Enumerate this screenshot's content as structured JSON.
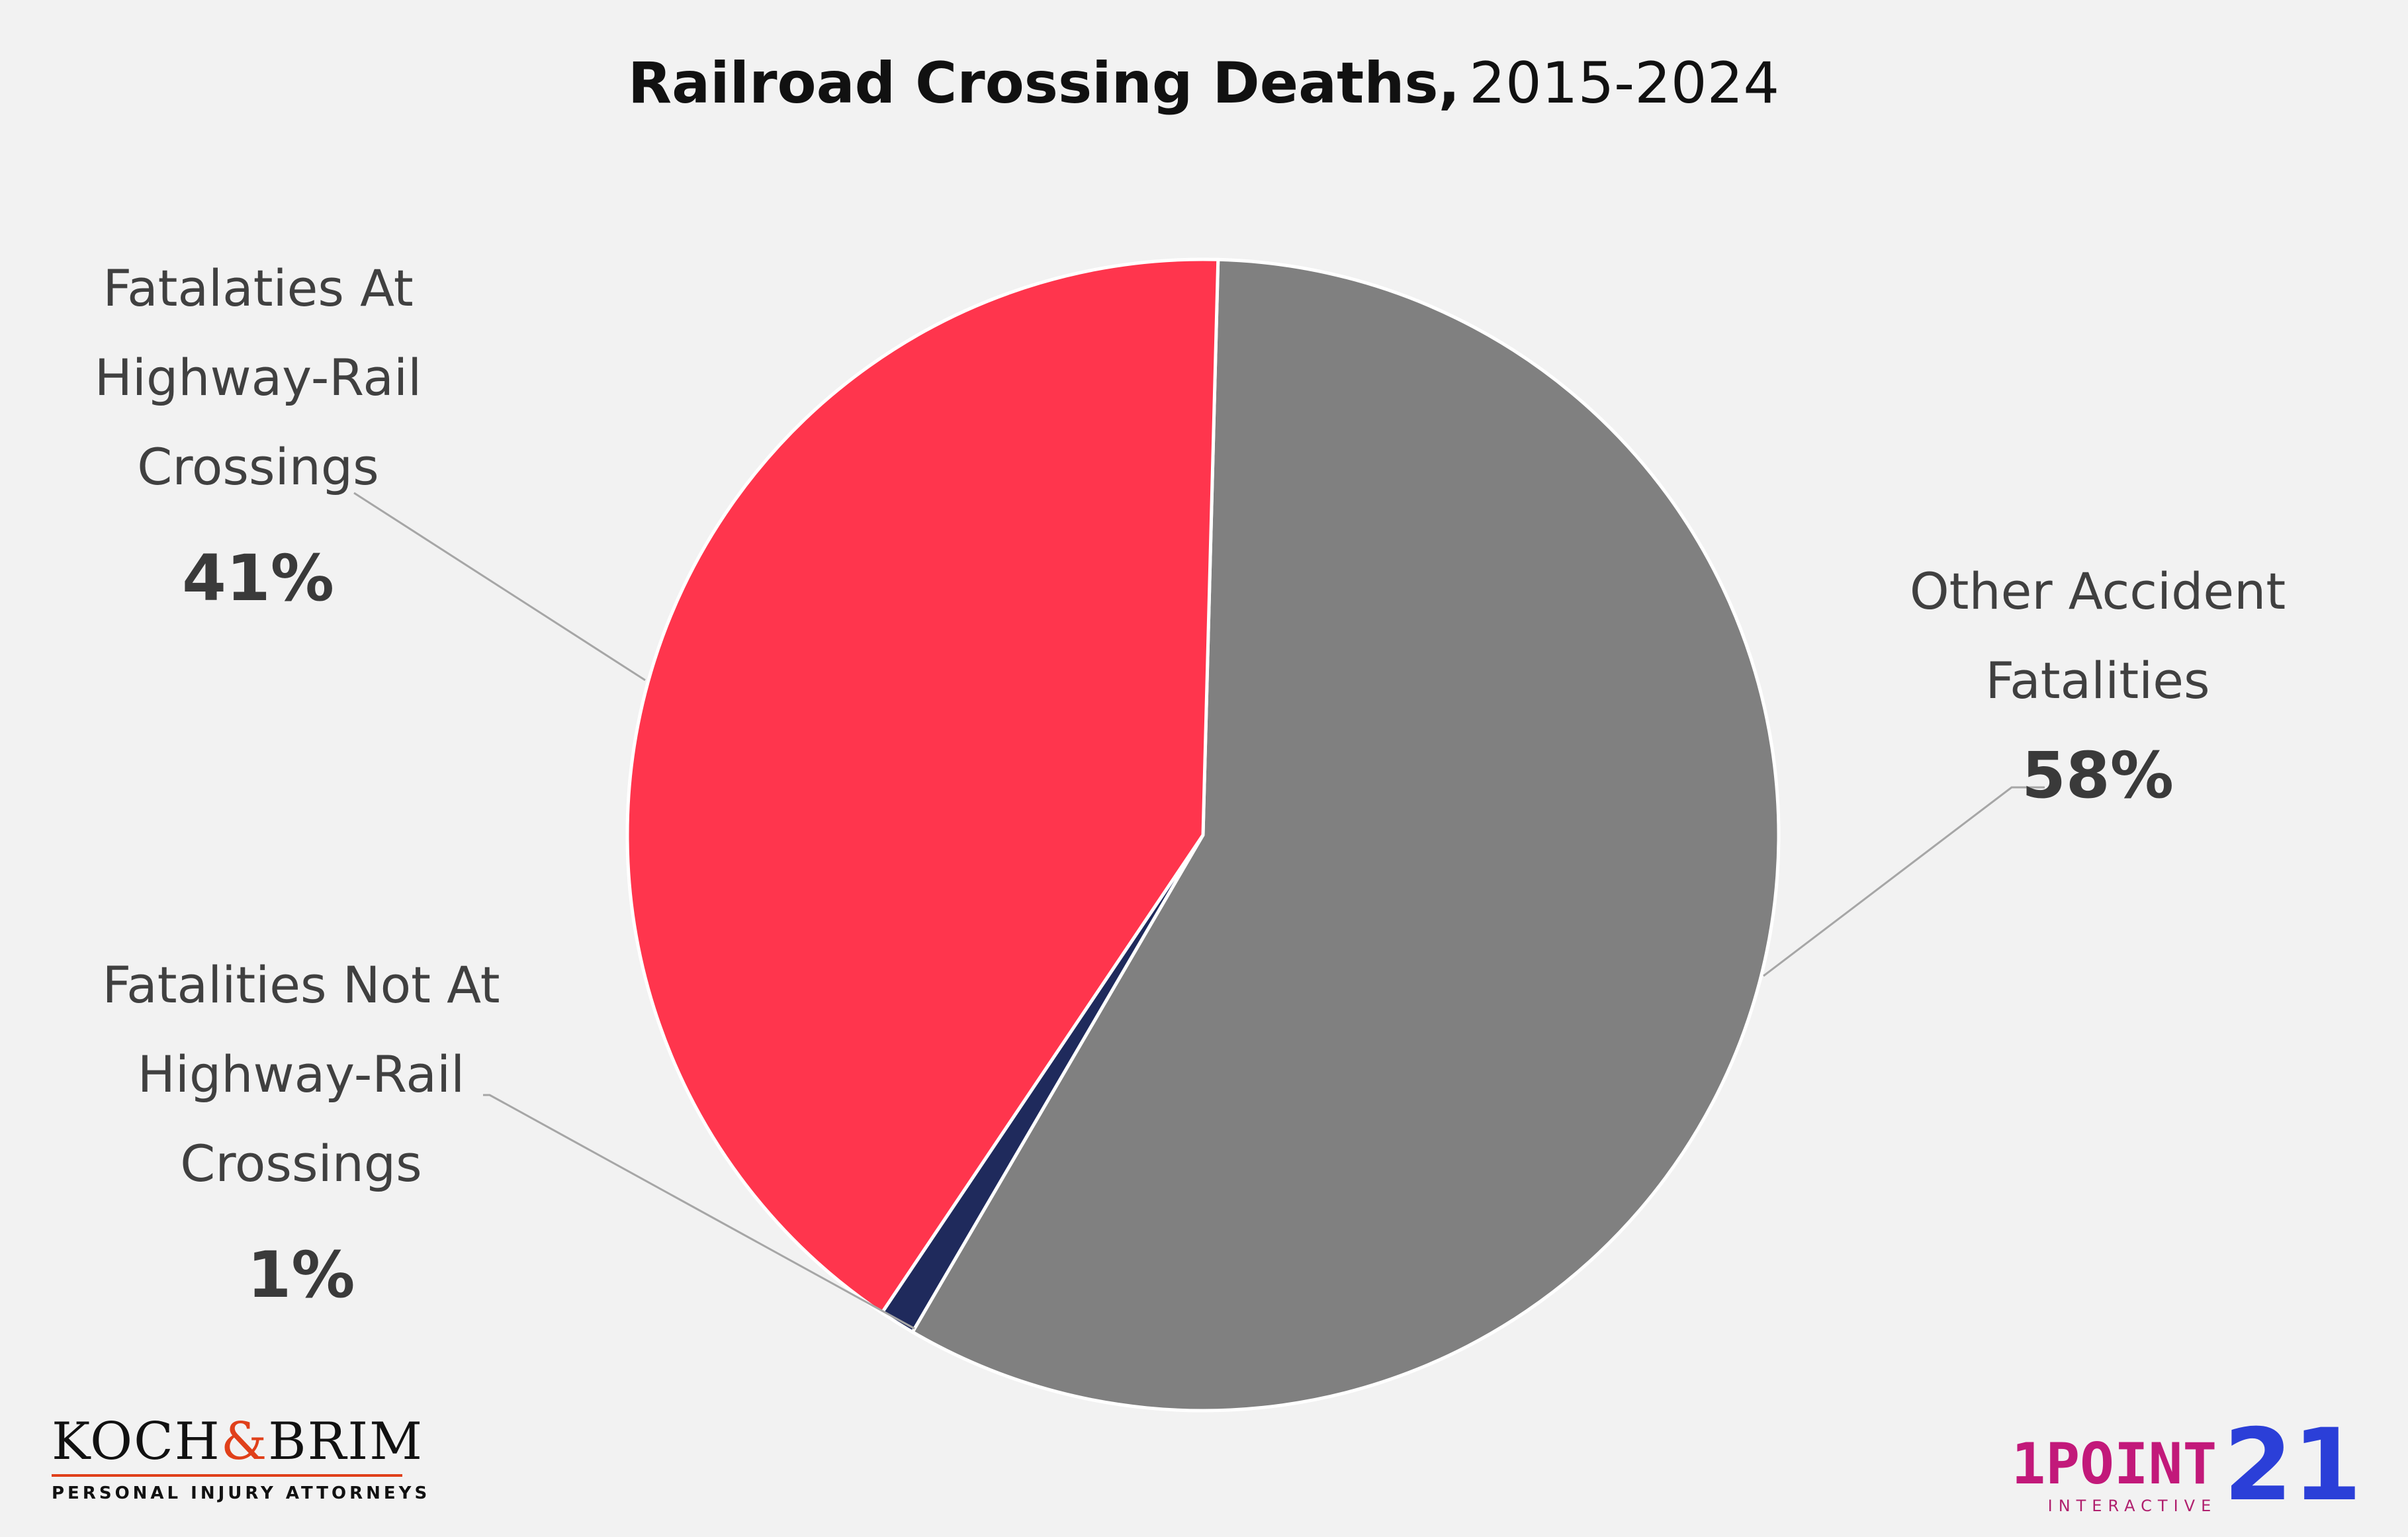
{
  "chart_data": {
    "type": "pie",
    "title": "Railroad Crossing Deaths,",
    "subtitle": "2015-2024",
    "slices": [
      {
        "label_lines": [
          "Other Accident",
          "Fatalities"
        ],
        "value": 58,
        "display": "58%",
        "color": "#808080"
      },
      {
        "label_lines": [
          "Fatalities Not At",
          "Highway-Rail",
          "Crossings"
        ],
        "value": 1,
        "display": "1%",
        "color": "#1f2a5c"
      },
      {
        "label_lines": [
          "Fatalaties At",
          "Highway-Rail",
          "Crossings"
        ],
        "value": 41,
        "display": "41%",
        "color": "#ff354d"
      }
    ]
  },
  "logos": {
    "left_name_a": "KOCH",
    "left_amp": "&",
    "left_name_b": "BRIM",
    "left_tagline": "PERSONAL INJURY ATTORNEYS",
    "right_word": "1POINT",
    "right_sub": "INTERACTIVE",
    "right_num": "21"
  }
}
